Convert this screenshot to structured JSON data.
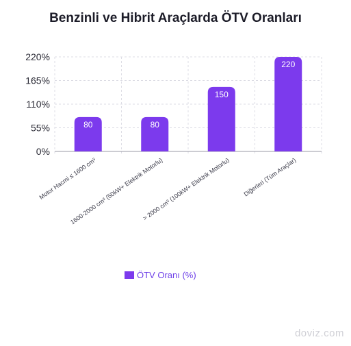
{
  "chart_data": {
    "type": "bar",
    "title": "Benzinli ve Hibrit Araçlarda ÖTV Oranları",
    "categories": [
      "Motor Hacmi ≤ 1600 cm³",
      "1600-2000 cm³ (50kW+ Elektrik Motorlu)",
      "> 2000 cm³ (100kW+ Elektrik Motorlu)",
      "Diğerleri (Tüm Araçlar)"
    ],
    "series": [
      {
        "name": "ÖTV Oranı (%)",
        "values": [
          80,
          80,
          150,
          220
        ]
      }
    ],
    "yticks": [
      "0%",
      "55%",
      "110%",
      "165%",
      "220%"
    ],
    "ylim": [
      0,
      220
    ],
    "grid": true,
    "legend_position": "bottom",
    "bar_color": "#7c3aed",
    "data_label_color": "#ffffff"
  },
  "watermark": "doviz.com"
}
